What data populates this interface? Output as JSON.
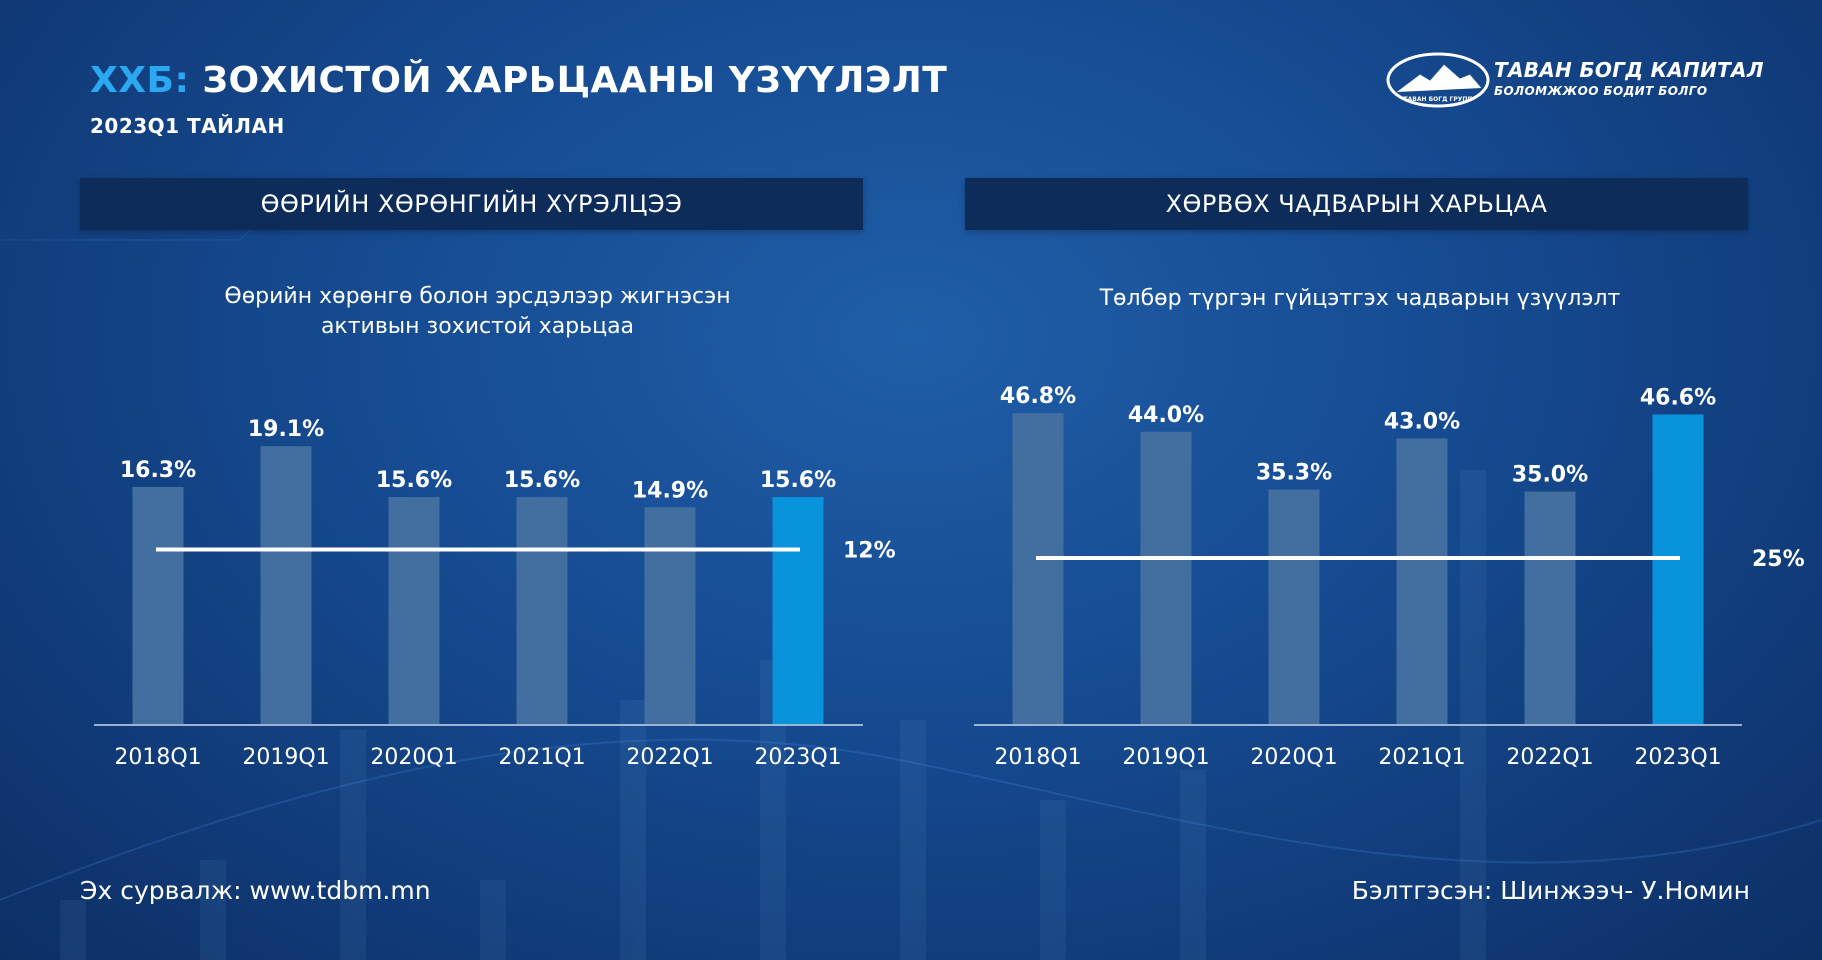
{
  "header": {
    "title_accent": "ХХБ:",
    "title_rest": " ЗОХИСТОЙ ХАРЬЦААНЫ ҮЗҮҮЛЭЛТ",
    "subtitle": "2023Q1 ТАЙЛАН"
  },
  "logo": {
    "name": "ТАВАН БОГД КАПИТАЛ",
    "slogan": "БОЛОМЖЖОО БОДИТ БОЛГО",
    "badge_text": "ТАВАН БОГД ГРУПП"
  },
  "panels": [
    {
      "header": "ӨӨРИЙН ХӨРӨНГИЙН ХҮРЭЛЦЭЭ"
    },
    {
      "header": "ХӨРВӨХ ЧАДВАРЫН ХАРЬЦАА"
    }
  ],
  "footer": {
    "source": "Эх сурвалж: www.tdbm.mn",
    "prepared": "Бэлтгэсэн: Шинжээч- У.Номин"
  },
  "colors": {
    "bar": "#426f9f",
    "highlight": "#0993db",
    "accent": "#2aa8f2",
    "header_bg": "#0d2c5a"
  },
  "chart_data": [
    {
      "type": "bar",
      "title": "Өөрийн хөрөнгө болон эрсдэлээр жигнэсэн\nактивын зохистой харьцаа",
      "categories": [
        "2018Q1",
        "2019Q1",
        "2020Q1",
        "2021Q1",
        "2022Q1",
        "2023Q1"
      ],
      "values": [
        16.3,
        19.1,
        15.6,
        15.6,
        14.9,
        15.6
      ],
      "value_labels": [
        "16.3%",
        "19.1%",
        "15.6%",
        "15.6%",
        "14.9%",
        "15.6%"
      ],
      "highlight_index": 5,
      "threshold": {
        "value": 12,
        "label": "12%"
      },
      "ylim": [
        0,
        22
      ]
    },
    {
      "type": "bar",
      "title": "Төлбөр түргэн гүйцэтгэх чадварын үзүүлэлт",
      "categories": [
        "2018Q1",
        "2019Q1",
        "2020Q1",
        "2021Q1",
        "2022Q1",
        "2023Q1"
      ],
      "values": [
        46.8,
        44.0,
        35.3,
        43.0,
        35.0,
        46.6
      ],
      "value_labels": [
        "46.8%",
        "44.0%",
        "35.3%",
        "43.0%",
        "35.0%",
        "46.6%"
      ],
      "highlight_index": 5,
      "threshold": {
        "value": 25,
        "label": "25%"
      },
      "ylim": [
        0,
        53
      ]
    }
  ]
}
